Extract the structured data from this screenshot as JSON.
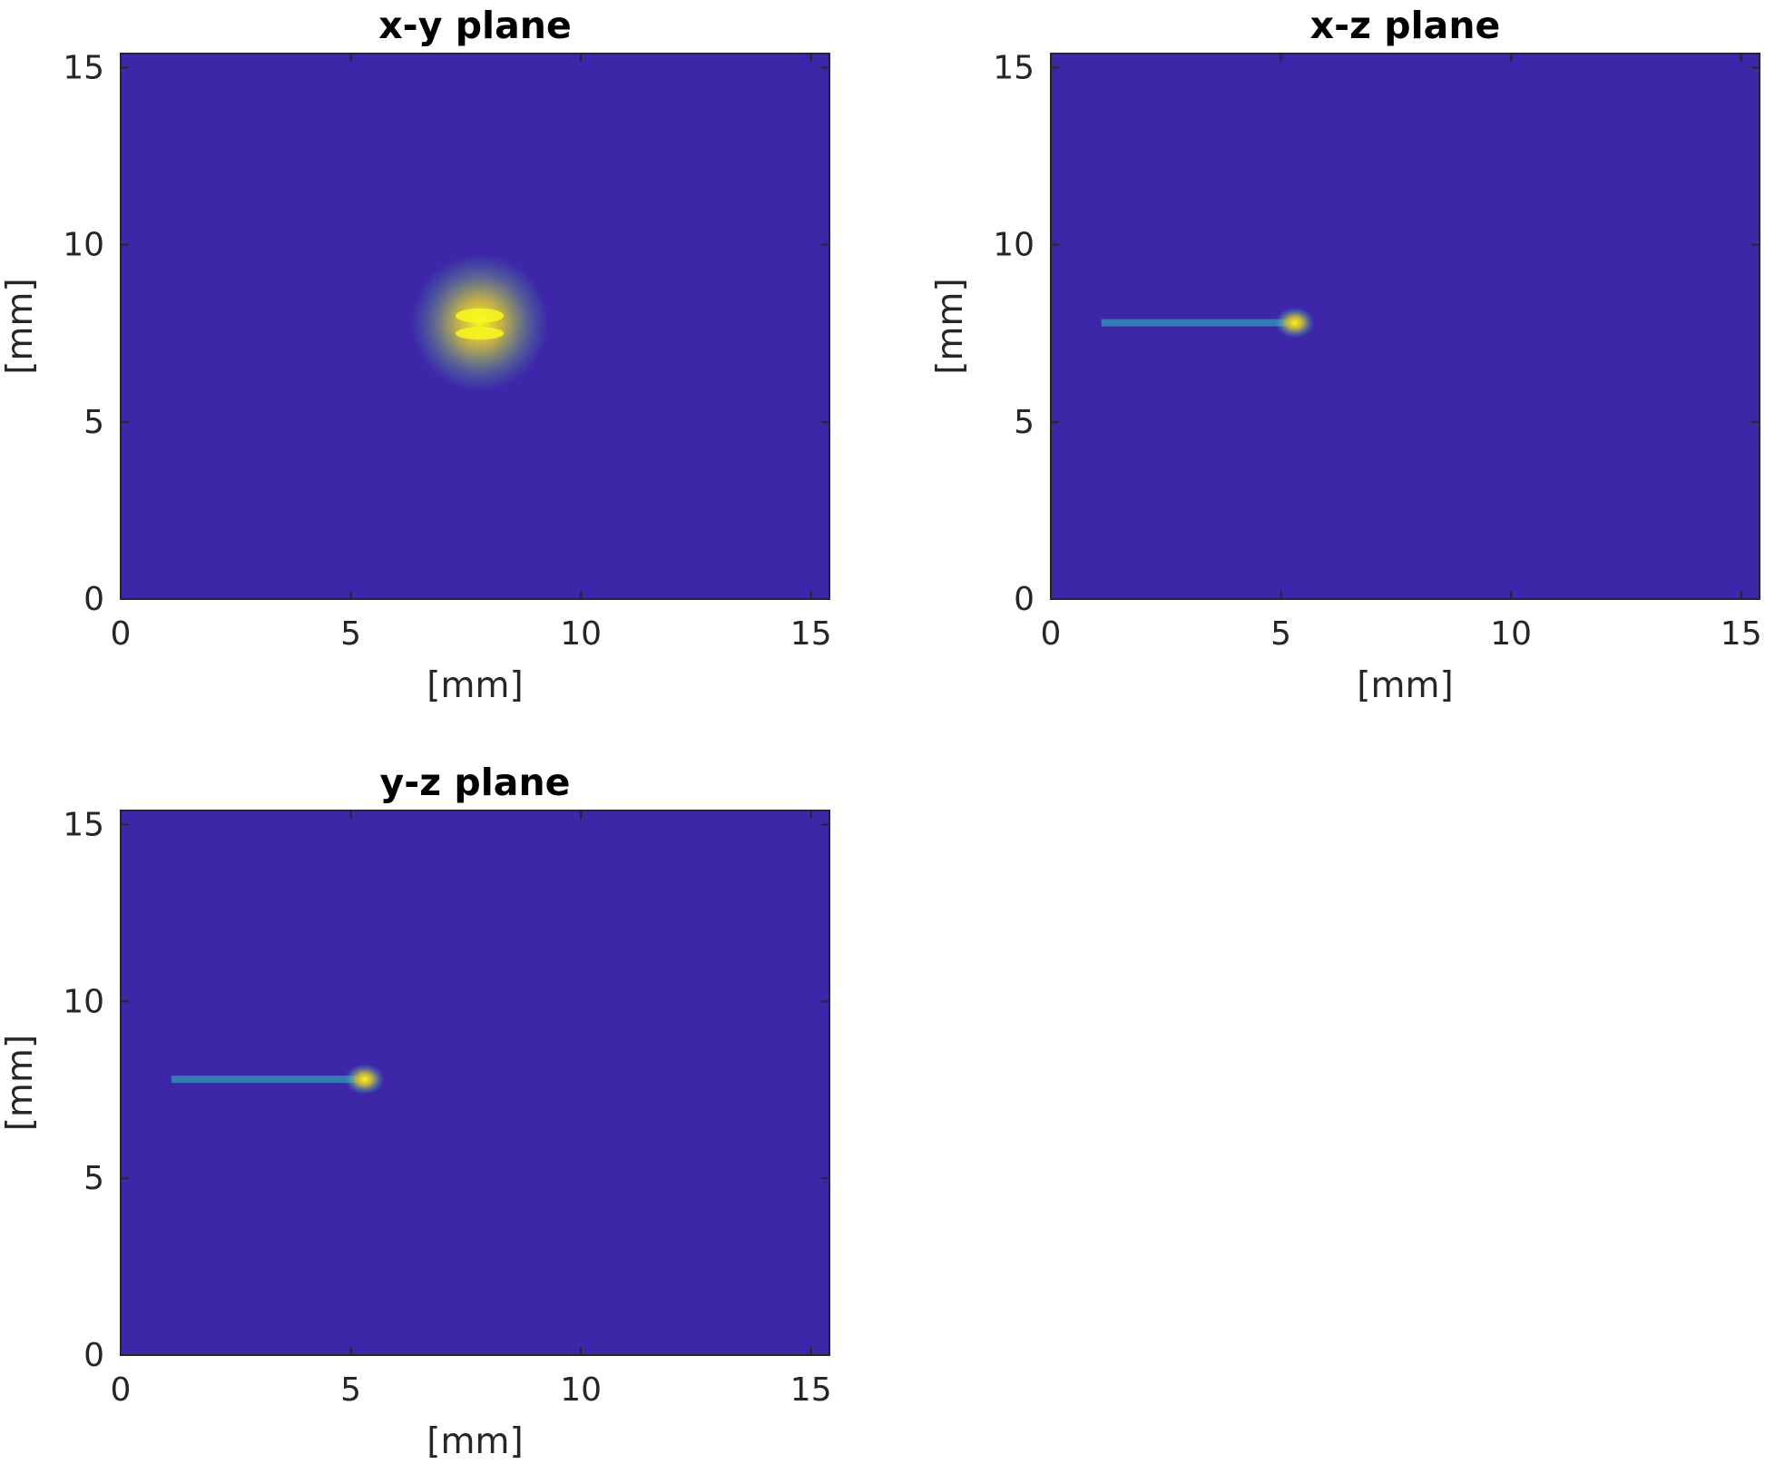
{
  "chart_data": [
    {
      "type": "heatmap",
      "title": "x-y plane",
      "xlabel": "[mm]",
      "ylabel": "[mm]",
      "xlim": [
        0,
        15.4
      ],
      "ylim": [
        15.4,
        0
      ],
      "xticks": [
        "0",
        "5",
        "10",
        "15"
      ],
      "yticks": [
        "0",
        "5",
        "10",
        "15"
      ],
      "colormap": [
        "#3e26a8",
        "#2f5efc",
        "#1aa9d6",
        "#3cc0ad",
        "#cdb939",
        "#f9f71f"
      ],
      "background_level": 0.0,
      "features": [
        {
          "kind": "strip",
          "x": [
            2.9,
            12.4
          ],
          "y": [
            2.5,
            4.9
          ],
          "level": 0.55
        },
        {
          "kind": "strip",
          "x": [
            2.9,
            12.4
          ],
          "y": [
            5.2,
            7.6
          ],
          "level": 0.55
        },
        {
          "kind": "strip",
          "x": [
            2.9,
            12.4
          ],
          "y": [
            7.9,
            10.3
          ],
          "level": 0.55
        },
        {
          "kind": "strip",
          "x": [
            2.9,
            12.4
          ],
          "y": [
            10.6,
            13.0
          ],
          "level": 0.55
        },
        {
          "kind": "hotspot",
          "x": [
            6.2,
            9.2
          ],
          "y": [
            6.7,
            9.0
          ],
          "peak": [
            7.8,
            7.8
          ],
          "level": 1.0
        }
      ]
    },
    {
      "type": "heatmap",
      "title": "x-z plane",
      "xlabel": "[mm]",
      "ylabel": "[mm]",
      "xlim": [
        0,
        15.4
      ],
      "ylim": [
        15.4,
        0
      ],
      "xticks": [
        "0",
        "5",
        "10",
        "15"
      ],
      "yticks": [
        "0",
        "5",
        "10",
        "15"
      ],
      "background_level": 0.0,
      "features": [
        {
          "kind": "beam",
          "x": [
            1.1,
            5.6
          ],
          "y": [
            6.3,
            9.2
          ],
          "peak": [
            5.3,
            7.8
          ],
          "level": 1.0
        },
        {
          "kind": "line-segment",
          "x": 12.7,
          "y": [
            2.5,
            4.9
          ],
          "level": 1.0
        },
        {
          "kind": "line-segment",
          "x": 12.7,
          "y": [
            5.2,
            7.6
          ],
          "level": 1.0
        },
        {
          "kind": "line-segment",
          "x": 12.7,
          "y": [
            7.9,
            10.3
          ],
          "level": 1.0
        },
        {
          "kind": "line-segment",
          "x": 12.7,
          "y": [
            10.6,
            13.0
          ],
          "level": 1.0
        }
      ]
    },
    {
      "type": "heatmap",
      "title": "y-z plane",
      "xlabel": "[mm]",
      "ylabel": "[mm]",
      "xlim": [
        0,
        15.4
      ],
      "ylim": [
        15.4,
        0
      ],
      "xticks": [
        "0",
        "5",
        "10",
        "15"
      ],
      "yticks": [
        "0",
        "5",
        "10",
        "15"
      ],
      "background_level": 0.0,
      "features": [
        {
          "kind": "beam",
          "x": [
            1.1,
            5.6
          ],
          "y": [
            6.3,
            9.2
          ],
          "peak": [
            5.3,
            7.8
          ],
          "level": 1.0
        },
        {
          "kind": "line-segment",
          "x": 12.6,
          "y": [
            2.9,
            12.4
          ],
          "level": 1.0
        }
      ]
    }
  ]
}
